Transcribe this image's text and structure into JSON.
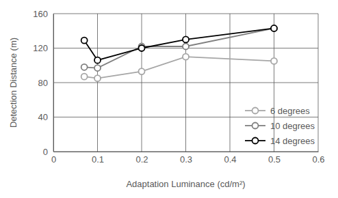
{
  "chart_data": {
    "type": "line",
    "x_label": "Adaptation Luminance (cd/m²)",
    "y_label": "Detection Distance (m)",
    "x": [
      0.07,
      0.1,
      0.2,
      0.3,
      0.5
    ],
    "series": [
      {
        "name": "6 degrees",
        "color": "#a6a6a6",
        "marker": "circle",
        "values": [
          87,
          85,
          93,
          110,
          105
        ]
      },
      {
        "name": "10 degrees",
        "color": "#7f7f7f",
        "marker": "circle",
        "values": [
          98,
          97,
          122,
          122,
          143
        ]
      },
      {
        "name": "14 degrees",
        "color": "#000000",
        "marker": "circle",
        "values": [
          129,
          106,
          120,
          130,
          143
        ]
      }
    ],
    "xlim": [
      0,
      0.6
    ],
    "xticks": [
      0,
      0.1,
      0.2,
      0.3,
      0.4,
      0.5,
      0.6
    ],
    "ylim": [
      0,
      160
    ],
    "yticks": [
      0,
      40,
      80,
      120,
      160
    ],
    "grid": true,
    "legend": "lower right"
  }
}
